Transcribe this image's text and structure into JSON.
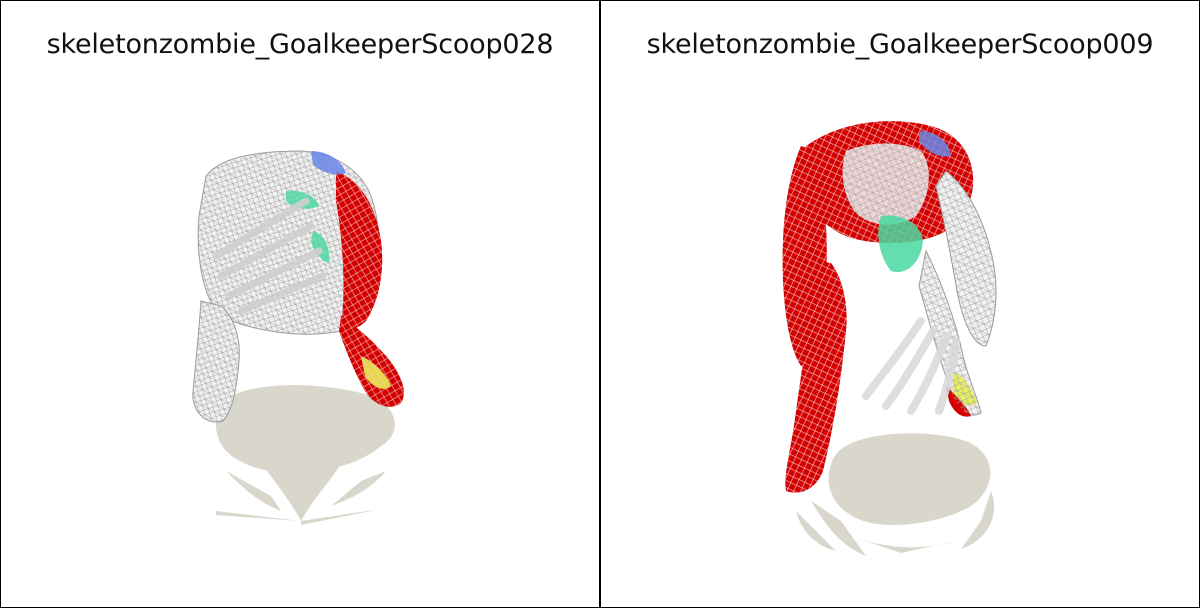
{
  "panels": [
    {
      "title": "skeletonzombie_GoalkeeperScoop028"
    },
    {
      "title": "skeletonzombie_GoalkeeperScoop009"
    }
  ],
  "colors": {
    "background": "#ffffff",
    "border": "#000000",
    "shadow": "#d9d6cc",
    "mesh_wire": "#bdbdbd",
    "heat_red": "#d40000",
    "heat_green": "#49d8a0",
    "heat_yellow": "#e8f04a",
    "heat_blue": "#6a86e8"
  }
}
